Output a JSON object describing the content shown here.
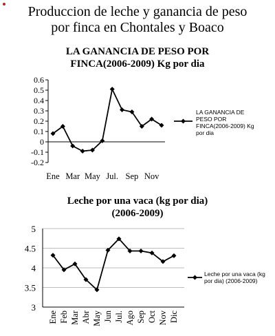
{
  "page": {
    "title_line1": "Produccion de leche y ganancia de  peso",
    "title_line2": "por finca   en Chontales y Boaco"
  },
  "chart_data": [
    {
      "type": "line",
      "title_line1": "LA GANANCIA DE PESO POR",
      "title_line2": "FINCA(2006-2009)  Kg por dia",
      "x_tick_labels": [
        "Ene",
        "Mar",
        "May",
        "Jul.",
        "Sep",
        "Nov"
      ],
      "categories": [
        "Ene",
        "Feb",
        "Mar",
        "Abr",
        "May",
        "Jun",
        "Jul.",
        "Ago",
        "Sep",
        "Oct",
        "Nov",
        "Dic"
      ],
      "ylim": [
        -0.2,
        0.6
      ],
      "y_ticks": [
        "0.6",
        "0.5",
        "0.4",
        "0.3",
        "0.2",
        "0.1",
        "0",
        "-0.1",
        "-0.2"
      ],
      "grid": false,
      "legend_placement": "right",
      "series": [
        {
          "name": "LA GANANCIA DE PESO POR FINCA(2006-2009)  Kg por dia",
          "legend_lines": [
            "LA GANANCIA DE",
            "PESO POR",
            "FINCA(2006-2009)  Kg",
            "por dia"
          ],
          "values": [
            0.08,
            0.15,
            -0.04,
            -0.09,
            -0.08,
            0.01,
            0.51,
            0.31,
            0.29,
            0.15,
            0.22,
            0.16
          ],
          "color": "#000000"
        }
      ]
    },
    {
      "type": "line",
      "title_line1": "Leche por una vaca (kg por dia)",
      "title_line2": "(2006-2009)",
      "categories": [
        "Ene",
        "Feb",
        "Mar",
        "Abr",
        "May",
        "Jun",
        "Jul.",
        "Ago",
        "Sep",
        "Oct",
        "Nov",
        "Dic"
      ],
      "ylim": [
        3,
        5
      ],
      "y_ticks": [
        "5",
        "4.5",
        "4",
        "3.5",
        "3"
      ],
      "grid": true,
      "legend_placement": "right",
      "series": [
        {
          "name": "Leche por una vaca (kg por dia) (2006-2009)",
          "legend_lines": [
            "Leche por una vaca (kg",
            "por dia) (2006-2009)"
          ],
          "values": [
            4.32,
            3.95,
            4.1,
            3.7,
            3.44,
            4.45,
            4.74,
            4.43,
            4.43,
            4.38,
            4.16,
            4.31
          ],
          "color": "#000000"
        }
      ]
    }
  ]
}
